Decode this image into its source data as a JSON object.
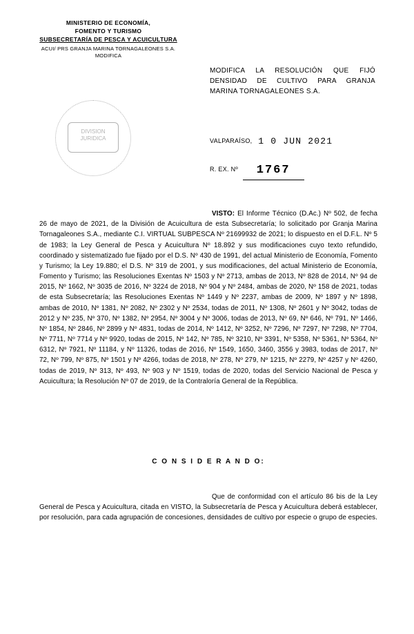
{
  "header": {
    "line1": "MINISTERIO DE ECONOMÍA,",
    "line2": "FOMENTO Y TURISMO",
    "line3": "SUBSECRETARÍA DE PESCA Y ACUICULTURA",
    "sub": "ACUI/ PRS GRANJA MARINA TORNAGALEONES S.A. MODIFICA"
  },
  "title": {
    "line1": "MODIFICA LA RESOLUCIÓN QUE FIJÓ",
    "line2": "DENSIDAD DE CULTIVO PARA GRANJA",
    "line3": "MARINA TORNAGALEONES S.A."
  },
  "stamp": {
    "inner1": "DIVISION",
    "inner2": "JURIDICA"
  },
  "location_date": {
    "label": "VALPARAÍSO,",
    "value": "1 0 JUN 2021"
  },
  "rex": {
    "label": "R. EX. Nº",
    "number": "1767"
  },
  "visto": {
    "lead": "VISTO:",
    "text": " El Informe Técnico (D.Ac.) Nº 502, de fecha 26 de mayo de 2021, de la División de Acuicultura de esta Subsecretaría; lo solicitado por Granja Marina Tornagaleones S.A., mediante C.I. VIRTUAL SUBPESCA Nº 21699932 de 2021; lo dispuesto en el D.F.L. Nº 5 de 1983; la Ley General de Pesca y Acuicultura Nº 18.892 y sus modificaciones cuyo texto refundido, coordinado y sistematizado fue fijado por el D.S. Nº 430 de 1991, del actual Ministerio de Economía, Fomento y Turismo; la Ley 19.880; el D.S. Nº 319 de 2001, y sus modificaciones, del actual Ministerio de Economía, Fomento y Turismo; las Resoluciones Exentas Nº 1503 y Nº 2713, ambas de 2013, Nº 828 de 2014, Nº 94 de 2015, Nº 1662, Nº 3035 de 2016, Nº 3224 de 2018, Nº 904 y Nº 2484, ambas de 2020, Nº 158 de 2021, todas de esta Subsecretaría; las Resoluciones Exentas Nº 1449 y Nº 2237, ambas de 2009, Nº 1897 y Nº 1898, ambas de 2010, Nº 1381, Nº 2082, Nº 2302 y Nº 2534, todas de 2011, Nº 1308, Nº 2601 y Nº 3042, todas de 2012 y Nº 235, Nº 370, Nº 1382, Nº 2954, Nº 3004 y Nº 3006, todas de 2013, Nº 69, Nº 646, Nº 791, Nº 1466, Nº 1854, Nº 2846, Nº 2899 y Nº 4831, todas de 2014, Nº 1412, Nº 3252, Nº 7296, Nº 7297, Nº 7298, Nº 7704, Nº 7711, Nº 7714 y Nº 9920, todas de 2015, Nº 142, Nº 785, Nº 3210, Nº 3391, Nº 5358, Nº 5361, Nº 5364, Nº 6312, Nº 7921, Nº 11184, y Nº 11326, todas de 2016, Nº 1549, 1650, 3460, 3556 y 3983, todas de 2017, Nº 72, Nº 799, Nº 875, Nº 1501 y Nº 4266, todas de 2018, Nº 278, Nº 279, Nº 1215, Nº 2279, Nº 4257 y Nº 4260, todas de 2019, Nº 313, Nº 493, Nº 903 y Nº 1519, todas de 2020, todas del Servicio Nacional de Pesca y Acuicultura; la Resolución Nº 07 de 2019, de la Contraloría General de la República."
  },
  "considerando": {
    "title": "C O N S I D E R A N D O:",
    "text": "Que de conformidad con el artículo 86 bis de la Ley General de Pesca y Acuicultura, citada en VISTO, la Subsecretaría de Pesca y Acuicultura deberá establecer, por resolución, para cada agrupación de concesiones, densidades de cultivo por especie o grupo de especies."
  },
  "colors": {
    "text": "#000000",
    "background": "#ffffff",
    "stamp": "#555555"
  }
}
